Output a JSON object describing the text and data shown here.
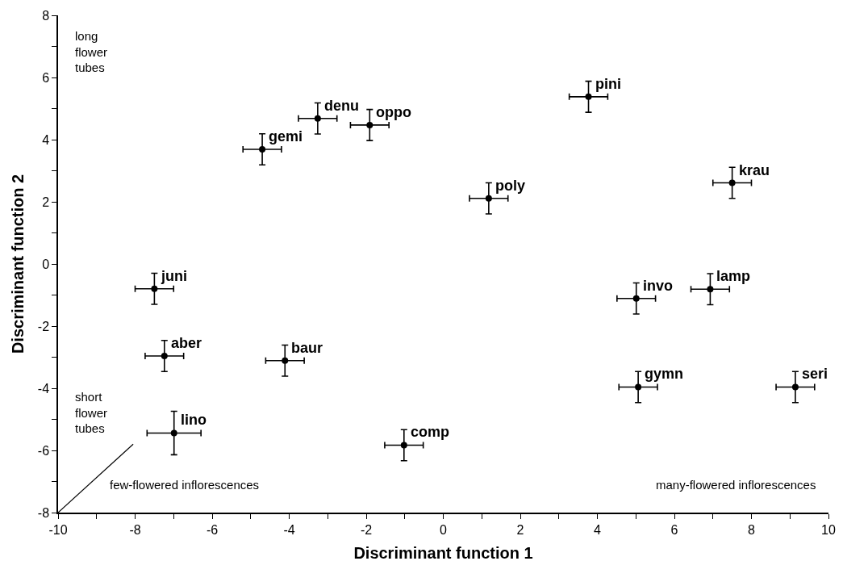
{
  "chart_data": {
    "type": "scatter",
    "xlabel": "Discriminant function 1",
    "ylabel": "Discriminant function 2",
    "xlim": [
      -10,
      10
    ],
    "xticks": [
      -10,
      {
        "value": -9,
        "label": null
      },
      -8,
      {
        "value": -7,
        "label": null
      },
      -6,
      {
        "value": -5,
        "label": null
      },
      -4,
      {
        "value": -3,
        "label": null
      },
      -2,
      {
        "value": -1,
        "label": null
      },
      0,
      {
        "value": 1,
        "label": null
      },
      2,
      {
        "value": 3,
        "label": null
      },
      4,
      {
        "value": 5,
        "label": null
      },
      6,
      {
        "value": 7,
        "label": null
      },
      8,
      {
        "value": 9,
        "label": null
      },
      10
    ],
    "ylim": [
      -8,
      8
    ],
    "yticks": [
      -8,
      {
        "value": -7,
        "label": null
      },
      -6,
      {
        "value": -5,
        "label": null
      },
      -4,
      {
        "value": -3,
        "label": null
      },
      -2,
      {
        "value": -1,
        "label": null
      },
      0,
      {
        "value": 1,
        "label": null
      },
      2,
      {
        "value": 3,
        "label": null
      },
      4,
      {
        "value": 5,
        "label": null
      },
      6,
      {
        "value": 7,
        "label": null
      },
      8
    ],
    "grid": false,
    "legend": false,
    "series": [
      {
        "marker": "circle",
        "color": "#000000",
        "x": [
          3.77,
          7.5,
          1.18,
          5.01,
          6.93,
          5.06,
          9.14,
          -3.26,
          -1.91,
          -4.7,
          -7.5,
          -7.24,
          -4.11,
          -6.99,
          -1.02
        ],
        "values": [
          5.38,
          2.61,
          2.11,
          -1.11,
          -0.81,
          -3.96,
          -3.96,
          4.68,
          4.47,
          3.69,
          -0.8,
          -2.96,
          -3.11,
          -5.44,
          -5.83
        ],
        "errors": [
          0.5,
          0.5,
          0.5,
          0.5,
          0.5,
          0.5,
          0.5,
          0.5,
          0.5,
          0.5,
          0.5,
          0.5,
          0.5,
          0.7,
          0.5
        ],
        "xerrors": [
          0.5,
          0.5,
          0.5,
          0.5,
          0.5,
          0.5,
          0.5,
          0.5,
          0.5,
          0.5,
          0.5,
          0.5,
          0.5,
          0.7,
          0.5
        ]
      },
      {
        "type": "line",
        "marker": "none",
        "color": "#000000",
        "x": [
          -10,
          -8.05
        ],
        "values": [
          -8,
          -5.8
        ]
      }
    ],
    "annotations": [
      {
        "text": "pini",
        "x": 3.77,
        "y": 5.38
      },
      {
        "text": "krau",
        "x": 7.5,
        "y": 2.61
      },
      {
        "text": "poly",
        "x": 1.18,
        "y": 2.11
      },
      {
        "text": "invo",
        "x": 5.01,
        "y": -1.11
      },
      {
        "text": "lamp",
        "x": 6.93,
        "y": -0.81
      },
      {
        "text": "gymn",
        "x": 5.06,
        "y": -3.96
      },
      {
        "text": "seri",
        "x": 9.14,
        "y": -3.96
      },
      {
        "text": "denu",
        "x": -3.26,
        "y": 4.68
      },
      {
        "text": "oppo",
        "x": -1.91,
        "y": 4.47
      },
      {
        "text": "gemi",
        "x": -4.7,
        "y": 3.69
      },
      {
        "text": "juni",
        "x": -7.5,
        "y": -0.8
      },
      {
        "text": "aber",
        "x": -7.24,
        "y": -2.96
      },
      {
        "text": "baur",
        "x": -4.11,
        "y": -3.11
      },
      {
        "text": "lino",
        "x": -6.99,
        "y": -5.44
      },
      {
        "text": "comp",
        "x": -1.02,
        "y": -5.83
      },
      "long\nflower\ntubes",
      "short\nflower\ntubes",
      "few-flowered inflorescences",
      "many-flowered inflorescences"
    ]
  }
}
